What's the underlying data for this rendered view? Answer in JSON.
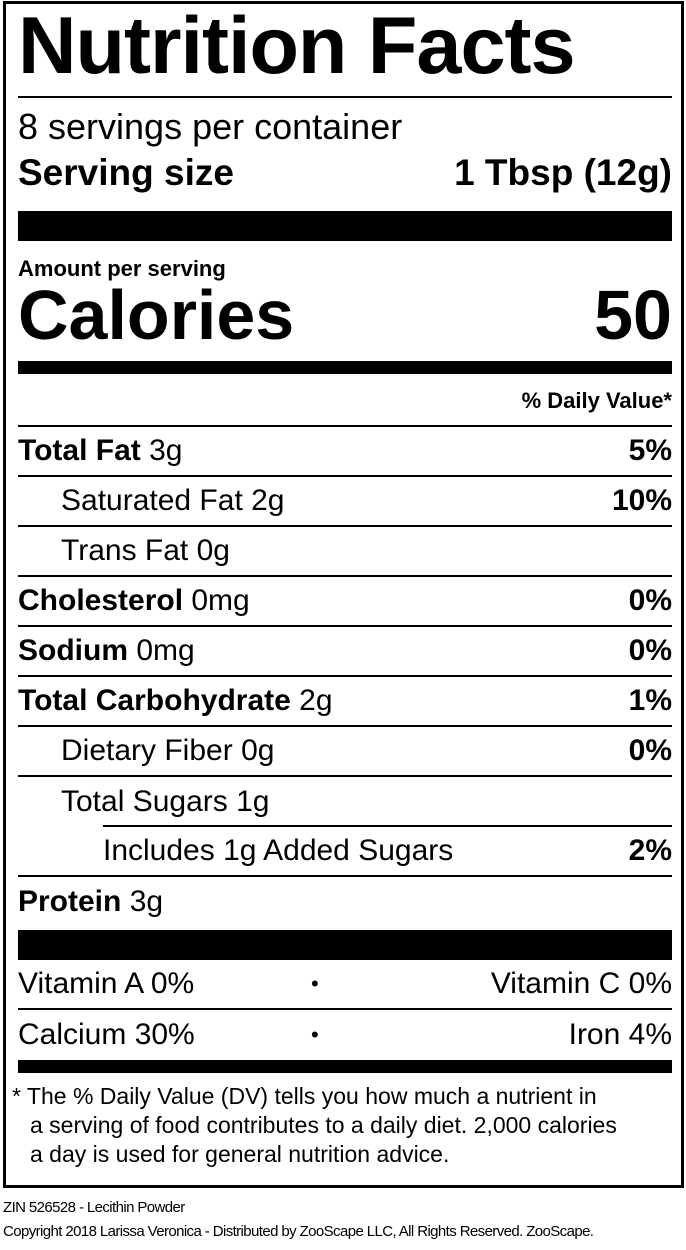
{
  "title": "Nutrition Facts",
  "servings_per_container": "8 servings per container",
  "serving_size_label": "Serving size",
  "serving_size_value": "1 Tbsp (12g)",
  "amount_per_serving": "Amount per serving",
  "calories_label": "Calories",
  "calories_value": "50",
  "daily_value_header": "% Daily Value*",
  "nutrients": [
    {
      "name": "Total Fat",
      "amount": "3g",
      "dv": "5%"
    },
    {
      "name": "Saturated Fat",
      "amount": "2g",
      "dv": "10%"
    },
    {
      "name": "Trans Fat",
      "amount": "0g",
      "dv": ""
    },
    {
      "name": "Cholesterol",
      "amount": "0mg",
      "dv": "0%"
    },
    {
      "name": "Sodium",
      "amount": "0mg",
      "dv": "0%"
    },
    {
      "name": "Total Carbohydrate",
      "amount": "2g",
      "dv": "1%"
    },
    {
      "name": "Dietary Fiber",
      "amount": "0g",
      "dv": "0%"
    },
    {
      "name": "Total Sugars",
      "amount": "1g",
      "dv": ""
    },
    {
      "name": "Includes 1g Added Sugars",
      "amount": "",
      "dv": "2%"
    },
    {
      "name": "Protein",
      "amount": "3g",
      "dv": ""
    }
  ],
  "vitamins": [
    {
      "left": "Vitamin A 0%",
      "sep": "•",
      "right": "Vitamin C 0%"
    },
    {
      "left": "Calcium 30%",
      "sep": "•",
      "right": "Iron 4%"
    }
  ],
  "footnote": [
    "* The % Daily Value (DV) tells you how much a nutrient in",
    "a serving of food contributes to a daily diet. 2,000 calories",
    "a day is used for general nutrition advice."
  ],
  "product_line": "ZIN 526528 - Lecithin Powder",
  "copyright": "Copyright 2018 Larissa Veronica - Distributed by ZooScape LLC, All Rights Reserved. ZooScape."
}
